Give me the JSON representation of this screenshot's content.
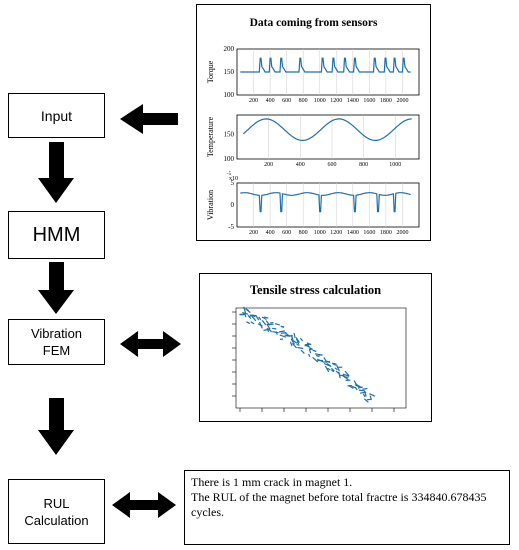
{
  "blocks": {
    "input": "Input",
    "hmm": "HMM",
    "fem_line1": "Vibration",
    "fem_line2": "FEM",
    "rul_line1": "RUL",
    "rul_line2": "Calculation"
  },
  "sensor_panel": {
    "title": "Data coming from sensors"
  },
  "stress_panel": {
    "title": "Tensile stress calculation"
  },
  "result_panel": {
    "line1": "There is 1 mm crack in magnet 1.",
    "line2": "The RUL of the magnet before total fractre is 334840.678435",
    "line3": "cycles."
  },
  "chart_data": [
    {
      "type": "line",
      "ylabel": "Torque",
      "x_ticks": [
        "200",
        "400",
        "600",
        "800",
        "1000",
        "1200",
        "1400",
        "1600",
        "1800",
        "2000"
      ],
      "y_ticks": [
        "100",
        "150",
        "200"
      ],
      "ylim": [
        100,
        200
      ],
      "xlim": [
        0,
        2200
      ],
      "baseline": 150,
      "spike_peak": 180,
      "spike_x": [
        280,
        400,
        530,
        760,
        1030,
        1160,
        1300,
        1420,
        1660,
        1790,
        1900,
        2010
      ],
      "color": "#1f6fa8"
    },
    {
      "type": "line",
      "ylabel": "Temperature",
      "x_ticks": [
        "200",
        "400",
        "600",
        "800",
        "1000"
      ],
      "y_ticks": [
        "100",
        "150"
      ],
      "ylim": [
        100,
        190
      ],
      "xlim": [
        0,
        1150
      ],
      "mean": 160,
      "amplitude": 22,
      "period": 460,
      "color": "#1f6fa8"
    },
    {
      "type": "line",
      "ylabel": "Vibration",
      "exponent_label": "x10",
      "exponent_sup": "-5",
      "x_ticks": [
        "200",
        "400",
        "600",
        "800",
        "1000",
        "1200",
        "1400",
        "1600",
        "1800",
        "2000"
      ],
      "y_ticks": [
        "5",
        "0",
        "-5"
      ],
      "ylim": [
        -5,
        5
      ],
      "xlim": [
        0,
        2200
      ],
      "baseline": 2.5,
      "dip_x": [
        280,
        530,
        1000,
        1420,
        1700,
        1900
      ],
      "dip_depth": -1.5,
      "color": "#1f6fa8"
    },
    {
      "type": "scatter",
      "title": "Tensile stress calculation",
      "color": "#1f6fa8"
    }
  ]
}
